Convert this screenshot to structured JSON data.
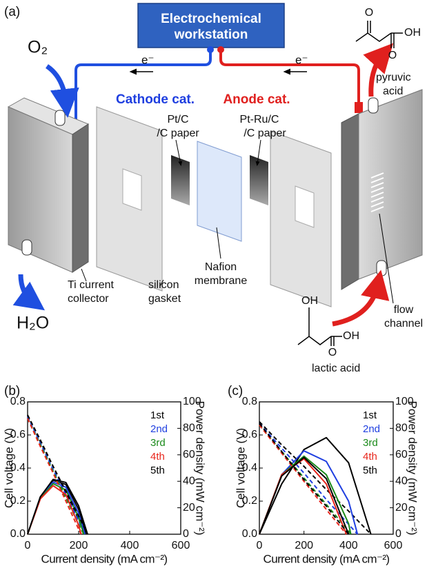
{
  "diagram": {
    "panel_label": "(a)",
    "workstation": [
      "Electrochemical",
      "workstation"
    ],
    "o2": "O₂",
    "h2o": "H₂O",
    "electrons": [
      "e⁻",
      "e⁻"
    ],
    "cathode": "Cathode cat.",
    "anode": "Anode cat.",
    "pt_c": [
      "Pt/C",
      "/C paper"
    ],
    "pt_ru": [
      "Pt-Ru/C",
      "/C paper"
    ],
    "nafion": [
      "Nafion",
      "membrane"
    ],
    "ti": [
      "Ti current",
      "collector"
    ],
    "gasket": [
      "silicon",
      "gasket"
    ],
    "pyruvic": [
      "pyruvic",
      "acid"
    ],
    "pyruvic_atoms": [
      "O",
      "OH",
      "O"
    ],
    "lactic": "lactic acid",
    "lactic_atoms": [
      "OH",
      "OH",
      "O"
    ],
    "flow": [
      "flow",
      "channel"
    ]
  },
  "chart_data": [
    {
      "type": "line",
      "panel_label": "(b)",
      "xlabel": "Current density (mA cm⁻²)",
      "ylabel": "Cell voltage (V)",
      "y2label": "Power density (mW cm⁻²)",
      "xlim": [
        0,
        600
      ],
      "xticks": [
        0,
        200,
        400,
        600
      ],
      "ylim": [
        0,
        0.8
      ],
      "yticks": [
        {
          "value": 0,
          "label": "0.0"
        },
        0.2,
        0.4,
        0.6,
        0.8
      ],
      "y2lim": [
        0,
        100
      ],
      "y2ticks": [
        0,
        20,
        40,
        60,
        80,
        100
      ],
      "series": [
        {
          "name": "1st",
          "color": "#000000",
          "x": [
            0,
            50,
            100,
            150,
            200,
            230
          ],
          "values": [
            0.72,
            0.56,
            0.41,
            0.25,
            0.09,
            0
          ],
          "power": [
            0,
            28.2,
            40.7,
            37.6,
            18.8,
            0
          ]
        },
        {
          "name": "2nd",
          "color": "#1f3fe0",
          "x": [
            0,
            50,
            100,
            150,
            200,
            225
          ],
          "values": [
            0.71,
            0.55,
            0.39,
            0.24,
            0.08,
            0
          ],
          "power": [
            0,
            27.6,
            39.4,
            35.5,
            15.8,
            0
          ]
        },
        {
          "name": "3rd",
          "color": "#1a8a1a",
          "x": [
            0,
            50,
            100,
            150,
            200,
            220
          ],
          "values": [
            0.7,
            0.54,
            0.38,
            0.22,
            0.06,
            0
          ],
          "power": [
            0,
            27.0,
            38.2,
            33.4,
            12.7,
            0
          ]
        },
        {
          "name": "4th",
          "color": "#e8261c",
          "x": [
            0,
            50,
            100,
            150,
            200,
            210
          ],
          "values": [
            0.7,
            0.53,
            0.37,
            0.2,
            0.03,
            0
          ],
          "power": [
            0,
            26.7,
            36.7,
            30.0,
            6.7,
            0
          ]
        },
        {
          "name": "5th",
          "color": "#000000",
          "x": [
            0,
            50,
            100,
            150,
            200,
            235
          ],
          "values": [
            0.72,
            0.57,
            0.41,
            0.26,
            0.11,
            0
          ],
          "power": [
            0,
            28.3,
            41.4,
            39.1,
            21.4,
            0
          ]
        }
      ]
    },
    {
      "type": "line",
      "panel_label": "(c)",
      "xlabel": "Current density (mA cm⁻²)",
      "ylabel": "Cell voltage (V)",
      "y2label": "Power density (mW cm⁻²)",
      "xlim": [
        0,
        600
      ],
      "xticks": [
        0,
        200,
        400,
        600
      ],
      "ylim": [
        0,
        0.8
      ],
      "yticks": [
        {
          "value": 0,
          "label": "0.0"
        },
        0.2,
        0.4,
        0.6,
        0.8
      ],
      "y2lim": [
        0,
        100
      ],
      "y2ticks": [
        0,
        20,
        40,
        60,
        80,
        100
      ],
      "series": [
        {
          "name": "1st",
          "color": "#000000",
          "x": [
            0,
            100,
            200,
            300,
            400,
            500
          ],
          "values": [
            0.68,
            0.54,
            0.41,
            0.27,
            0.14,
            0
          ],
          "power": [
            0,
            38,
            64,
            73,
            54,
            0
          ]
        },
        {
          "name": "2nd",
          "color": "#1f3fe0",
          "x": [
            0,
            100,
            200,
            300,
            400,
            440
          ],
          "values": [
            0.67,
            0.52,
            0.37,
            0.21,
            0.06,
            0
          ],
          "power": [
            0,
            45,
            63,
            55,
            25,
            0
          ]
        },
        {
          "name": "3rd",
          "color": "#1a8a1a",
          "x": [
            0,
            100,
            200,
            300,
            400,
            410
          ],
          "values": [
            0.66,
            0.5,
            0.34,
            0.18,
            0.02,
            0
          ],
          "power": [
            0,
            45,
            59,
            45,
            8,
            0
          ]
        },
        {
          "name": "4th",
          "color": "#e8261c",
          "x": [
            0,
            100,
            200,
            300,
            390
          ],
          "values": [
            0.66,
            0.49,
            0.32,
            0.15,
            0
          ],
          "power": [
            0,
            45,
            57,
            38,
            0
          ]
        },
        {
          "name": "5th",
          "color": "#000000",
          "x": [
            0,
            100,
            200,
            300,
            400
          ],
          "values": [
            0.67,
            0.5,
            0.33,
            0.17,
            0
          ],
          "power": [
            0,
            44,
            58,
            42,
            0
          ]
        }
      ]
    }
  ]
}
